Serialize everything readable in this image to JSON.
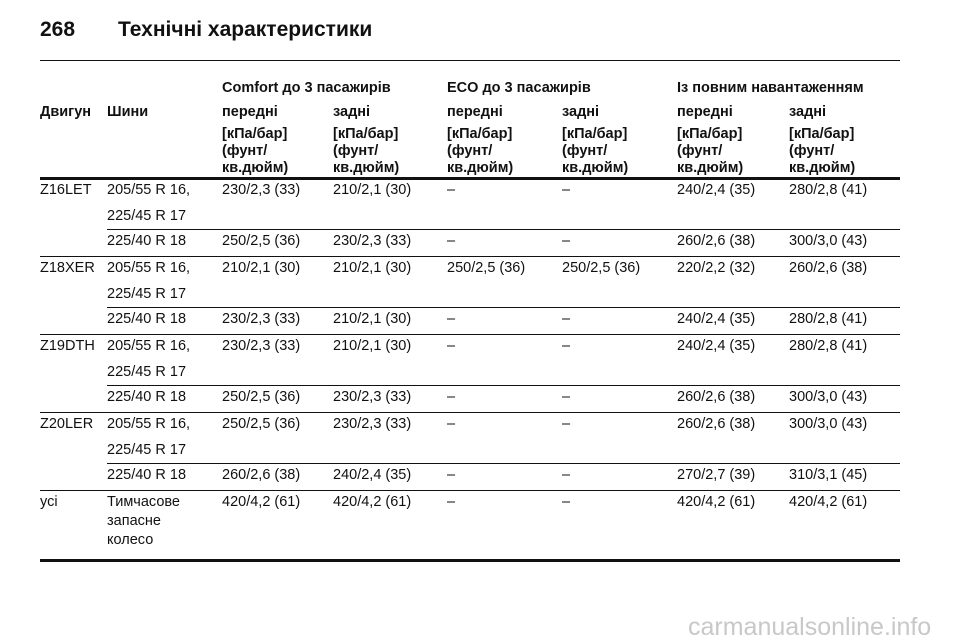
{
  "header": {
    "page_number": "268",
    "title": "Технічні характеристики"
  },
  "table": {
    "groups": [
      "Comfort до 3 пасажирів",
      "ECO до 3 пасажирів",
      "Із повним навантаженням"
    ],
    "engine_header": "Двигун",
    "tyre_header": "Шини",
    "sub_columns": [
      "передні",
      "задні"
    ],
    "unit_lines": [
      "[кПа/бар]",
      "(фунт/",
      "кв.дюйм)"
    ],
    "blocks": [
      {
        "engine": "Z16LET",
        "rows": [
          {
            "tyre": [
              "205/55 R 16,",
              "225/45 R 17"
            ],
            "values": [
              "230/2,3 (33)",
              "210/2,1 (30)",
              "–",
              "–",
              "240/2,4 (35)",
              "280/2,8 (41)"
            ]
          },
          {
            "tyre": [
              "225/40 R 18"
            ],
            "values": [
              "250/2,5 (36)",
              "230/2,3 (33)",
              "–",
              "–",
              "260/2,6 (38)",
              "300/3,0 (43)"
            ]
          }
        ]
      },
      {
        "engine": "Z18XER",
        "rows": [
          {
            "tyre": [
              "205/55 R 16,",
              "225/45 R 17"
            ],
            "values": [
              "210/2,1 (30)",
              "210/2,1 (30)",
              "250/2,5 (36)",
              "250/2,5 (36)",
              "220/2,2 (32)",
              "260/2,6 (38)"
            ]
          },
          {
            "tyre": [
              "225/40 R 18"
            ],
            "values": [
              "230/2,3 (33)",
              "210/2,1 (30)",
              "–",
              "–",
              "240/2,4 (35)",
              "280/2,8 (41)"
            ]
          }
        ]
      },
      {
        "engine": "Z19DTH",
        "rows": [
          {
            "tyre": [
              "205/55 R 16,",
              "225/45 R 17"
            ],
            "values": [
              "230/2,3 (33)",
              "210/2,1 (30)",
              "–",
              "–",
              "240/2,4 (35)",
              "280/2,8 (41)"
            ]
          },
          {
            "tyre": [
              "225/40 R 18"
            ],
            "values": [
              "250/2,5 (36)",
              "230/2,3 (33)",
              "–",
              "–",
              "260/2,6 (38)",
              "300/3,0 (43)"
            ]
          }
        ]
      },
      {
        "engine": "Z20LER",
        "rows": [
          {
            "tyre": [
              "205/55 R 16,",
              "225/45 R 17"
            ],
            "values": [
              "250/2,5 (36)",
              "230/2,3 (33)",
              "–",
              "–",
              "260/2,6 (38)",
              "300/3,0 (43)"
            ]
          },
          {
            "tyre": [
              "225/40 R 18"
            ],
            "values": [
              "260/2,6 (38)",
              "240/2,4 (35)",
              "–",
              "–",
              "270/2,7 (39)",
              "310/3,1 (45)"
            ]
          }
        ]
      },
      {
        "engine": "усі",
        "rows": [
          {
            "tyre": [
              "Тимчасове",
              "запасне",
              "колесо"
            ],
            "values": [
              "420/4,2 (61)",
              "420/4,2 (61)",
              "–",
              "–",
              "420/4,2 (61)",
              "420/4,2 (61)"
            ]
          }
        ]
      }
    ]
  },
  "watermark": "carmanualsonline.info"
}
